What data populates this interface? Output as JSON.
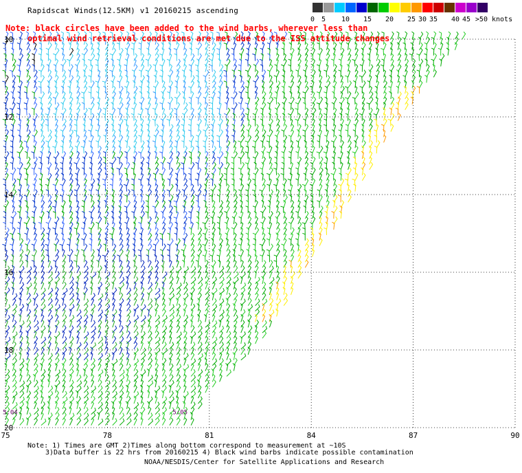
{
  "header": {
    "title": "Rapidscat Winds(12.5KM) v1 20160215 ascending",
    "note_line1": "Note: black circles have been added to the wind barbs, wherever less than",
    "note_line2": "optimal wind retrieval conditions are met due to the ISS attitude changes"
  },
  "scale": {
    "unit": "knots",
    "bins": [
      {
        "label": "0",
        "color": "#333333"
      },
      {
        "label": "5",
        "color": "#999999"
      },
      {
        "label": "",
        "color": "#00ccff"
      },
      {
        "label": "10",
        "color": "#0066ff"
      },
      {
        "label": "",
        "color": "#0000cc"
      },
      {
        "label": "15",
        "color": "#006600"
      },
      {
        "label": "",
        "color": "#00cc00"
      },
      {
        "label": "20",
        "color": "#ffff00"
      },
      {
        "label": "",
        "color": "#ffcc00"
      },
      {
        "label": "25",
        "color": "#ff9900"
      },
      {
        "label": "30",
        "color": "#ff0000"
      },
      {
        "label": "35",
        "color": "#cc0000"
      },
      {
        "label": "",
        "color": "#663300"
      },
      {
        "label": "40",
        "color": "#cc00cc"
      },
      {
        "label": "45",
        "color": "#9900cc"
      },
      {
        "label": ">50 knots",
        "color": "#330066"
      }
    ]
  },
  "chart_data": {
    "type": "scatter",
    "title": "Rapidscat Winds(12.5KM) v1 20160215 ascending",
    "x_ticks": [
      "75",
      "78",
      "81",
      "84",
      "87",
      "90"
    ],
    "y_ticks": [
      "10",
      "12",
      "14",
      "16",
      "18",
      "20"
    ],
    "xlim": [
      75,
      90
    ],
    "ylim": [
      10,
      20
    ],
    "y_direction": "down",
    "grid": true,
    "swath_edge": [
      [
        88.5,
        10
      ],
      [
        86.5,
        12.2
      ],
      [
        84.9,
        14.6
      ],
      [
        83.8,
        16
      ],
      [
        82.8,
        17.5
      ],
      [
        81.7,
        18.6
      ],
      [
        80.8,
        19.2
      ],
      [
        80.5,
        20
      ]
    ],
    "time_labels": [
      {
        "text": "5:04",
        "x": 75,
        "y": 19.55
      },
      {
        "text": "5:05",
        "x": 80.0,
        "y": 19.55
      }
    ],
    "speed_zones": [
      {
        "region": "north-west",
        "speed_range_knots": "5-10",
        "color": "cyan"
      },
      {
        "region": "central",
        "speed_range_knots": "10-15",
        "color": "blue"
      },
      {
        "region": "south and east",
        "speed_range_knots": "15-20",
        "color": "green"
      },
      {
        "region": "eastern swath edge",
        "speed_range_knots": "20-30",
        "color": "yellow/orange"
      }
    ]
  },
  "footer": {
    "line1": "Note: 1) Times are GMT 2)Times along bottom correspond to measurement at ~10S",
    "line2": "3)Data buffer is 22 hrs from 20160215 4) Black wind barbs indicate possible contamination",
    "line3": "NOAA/NESDIS/Center for Satellite Applications and Research"
  }
}
